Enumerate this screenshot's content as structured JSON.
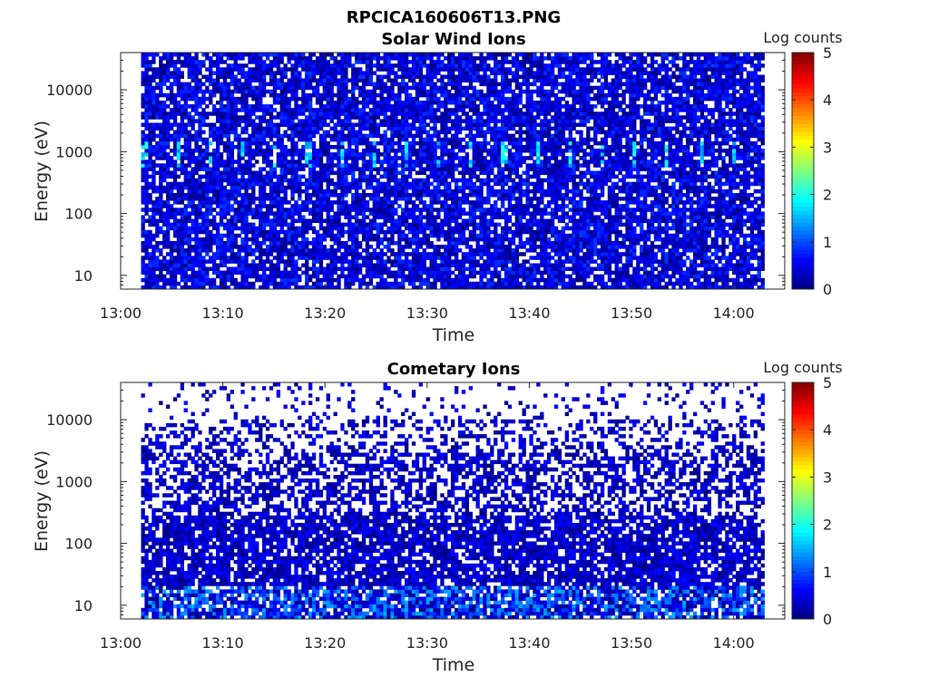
{
  "figure_title": "RPCICA160606T13.PNG",
  "colors": {
    "jet": [
      "#00008f",
      "#0000ff",
      "#0070ff",
      "#00dfff",
      "#50ff af",
      "#bfff40",
      "#ffcf00",
      "#ff6000",
      "#ef0000",
      "#800000"
    ]
  },
  "chart_data": [
    {
      "type": "heatmap",
      "title": "Solar Wind Ions",
      "xlabel": "Time",
      "ylabel": "Energy (eV)",
      "xlim": [
        "13:00",
        "14:05"
      ],
      "ylim": [
        6,
        40000
      ],
      "yscale": "log",
      "xticks": [
        "13:00",
        "13:10",
        "13:20",
        "13:30",
        "13:40",
        "13:50",
        "14:00"
      ],
      "yticks": [
        10,
        100,
        1000,
        10000
      ],
      "ytick_labels": [
        "10",
        "100",
        "1000",
        "10000"
      ],
      "data_start": "13:02",
      "data_end": "14:03",
      "colorbar": {
        "label": "Log counts",
        "range": [
          0,
          5
        ],
        "ticks": [
          "0",
          "1",
          "2",
          "3",
          "4",
          "5"
        ]
      },
      "description_of_values": "Mostly 0–1 log counts across all energies; peaks of ~2 log counts near 700 eV recurring about every 3 minutes"
    },
    {
      "type": "heatmap",
      "title": "Cometary Ions",
      "xlabel": "Time",
      "ylabel": "Energy (eV)",
      "xlim": [
        "13:00",
        "14:05"
      ],
      "ylim": [
        6,
        40000
      ],
      "yscale": "log",
      "xticks": [
        "13:00",
        "13:10",
        "13:20",
        "13:30",
        "13:40",
        "13:50",
        "14:00"
      ],
      "yticks": [
        10,
        100,
        1000,
        10000
      ],
      "ytick_labels": [
        "10",
        "100",
        "1000",
        "10000"
      ],
      "data_start": "13:02",
      "data_end": "14:03",
      "colorbar": {
        "label": "Log counts",
        "range": [
          0,
          5
        ],
        "ticks": [
          "0",
          "1",
          "2",
          "3",
          "4",
          "5"
        ]
      },
      "description_of_values": "Sparse 0–1 log counts above 1000 eV, denser below 300 eV, up to ~1.5 log counts below 20 eV"
    }
  ]
}
